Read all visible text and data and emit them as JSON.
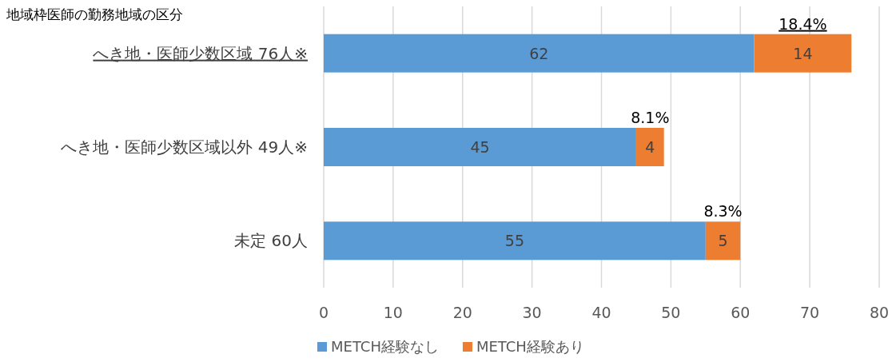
{
  "chart_data": {
    "type": "bar",
    "orientation": "horizontal",
    "stacked": true,
    "ylabel": "地域枠医師の勤務地域の区分",
    "categories": [
      "へき地・医師少数区域 76人※",
      "へき地・医師少数区域以外 49人※",
      "未定 60人"
    ],
    "series": [
      {
        "name": "METCH経験なし",
        "color": "#5b9bd5",
        "values": [
          62,
          45,
          55
        ]
      },
      {
        "name": "METCH経験あり",
        "color": "#ed7d31",
        "values": [
          14,
          4,
          5
        ]
      }
    ],
    "data_labels": true,
    "xlim": [
      0,
      80
    ],
    "xticks": [
      0,
      10,
      20,
      30,
      40,
      50,
      60,
      70,
      80
    ],
    "grid": "x",
    "legend": "bottom",
    "annotations": [
      {
        "text": "18.4%",
        "x": 76,
        "y": "へき地・医師少数区域 76人※"
      },
      {
        "text": "8.1%",
        "x": 49,
        "y": "へき地・医師少数区域以外 49人※"
      },
      {
        "text": "8.3%",
        "x": 60,
        "y": "未定 60人"
      }
    ]
  }
}
